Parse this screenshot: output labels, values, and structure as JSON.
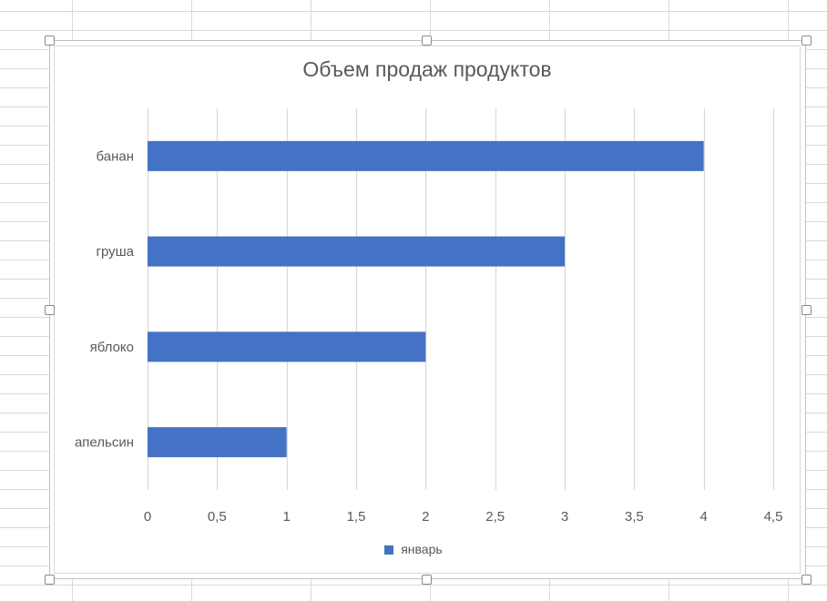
{
  "chart_data": {
    "type": "bar",
    "orientation": "horizontal",
    "title": "Объем продаж продуктов",
    "categories": [
      "банан",
      "груша",
      "яблоко",
      "апельсин"
    ],
    "series": [
      {
        "name": "январь",
        "values": [
          4,
          3,
          2,
          1
        ],
        "color": "#4472c4"
      }
    ],
    "xlim": [
      0,
      4.5
    ],
    "x_ticks": [
      0,
      0.5,
      1,
      1.5,
      2,
      2.5,
      3,
      3.5,
      4,
      4.5
    ],
    "x_tick_labels": [
      "0",
      "0,5",
      "1",
      "1,5",
      "2",
      "2,5",
      "3",
      "3,5",
      "4",
      "4,5"
    ],
    "xlabel": "",
    "ylabel": "",
    "grid": "vertical",
    "legend": "bottom"
  },
  "colors": {
    "series": "#4472c4",
    "gridline": "#d9d9d9",
    "text": "#595959"
  }
}
